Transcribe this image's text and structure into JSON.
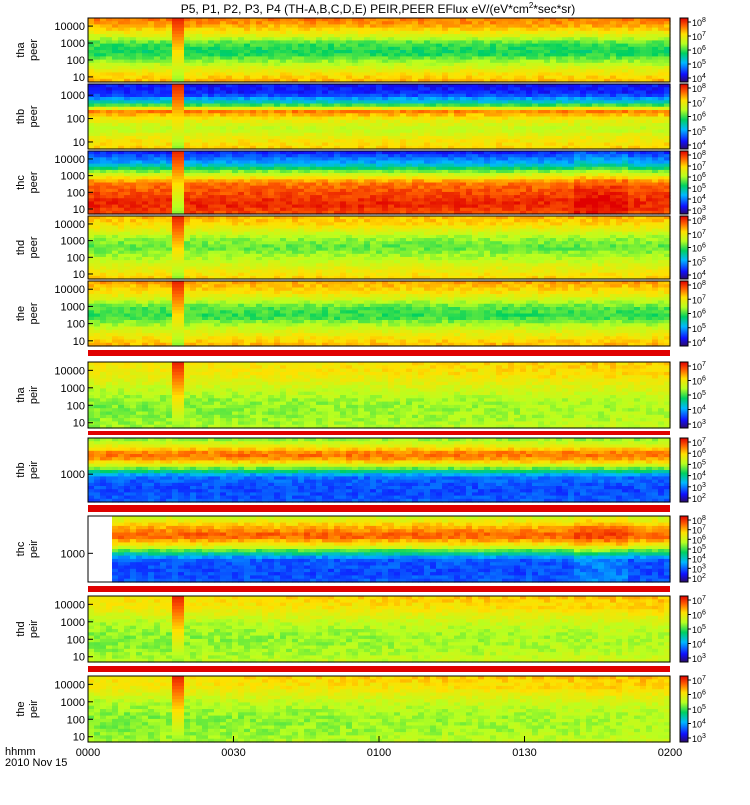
{
  "chart_data": {
    "type": "heatmap",
    "title_main": "P5, P1, P2, P3, P4 (TH-A,B,C,D,E) PEIR,PEER EFlux eV/(eV*cm",
    "title_sup": "2",
    "title_tail": "*sec*sr)",
    "colormap": "rainbow (blue-green-yellow-red)",
    "x_axis": {
      "label": "hhmm",
      "date": "2010 Nov 15",
      "ticks": [
        "0000",
        "0030",
        "0100",
        "0130",
        "0200"
      ]
    },
    "panels": [
      {
        "probe": "tha",
        "species": "peer",
        "y_ticks": [
          "10000",
          "1000",
          "100",
          "10"
        ],
        "y_range_eV": [
          5,
          30000
        ],
        "cb_ticks": [
          {
            "base": "10",
            "exp": "8"
          },
          {
            "base": "10",
            "exp": "7"
          },
          {
            "base": "10",
            "exp": "6"
          },
          {
            "base": "10",
            "exp": "5"
          },
          {
            "base": "10",
            "exp": "4"
          }
        ]
      },
      {
        "probe": "thb",
        "species": "peer",
        "y_ticks": [
          "1000",
          "100",
          "10"
        ],
        "y_range_eV": [
          5,
          3000
        ],
        "cb_ticks": [
          {
            "base": "10",
            "exp": "8"
          },
          {
            "base": "10",
            "exp": "7"
          },
          {
            "base": "10",
            "exp": "6"
          },
          {
            "base": "10",
            "exp": "5"
          },
          {
            "base": "10",
            "exp": "4"
          }
        ]
      },
      {
        "probe": "thc",
        "species": "peer",
        "y_ticks": [
          "10000",
          "1000",
          "100",
          "10"
        ],
        "y_range_eV": [
          5,
          30000
        ],
        "cb_ticks": [
          {
            "base": "10",
            "exp": "8"
          },
          {
            "base": "10",
            "exp": "7"
          },
          {
            "base": "10",
            "exp": "6"
          },
          {
            "base": "10",
            "exp": "5"
          },
          {
            "base": "10",
            "exp": "4"
          },
          {
            "base": "10",
            "exp": "3"
          }
        ]
      },
      {
        "probe": "thd",
        "species": "peer",
        "y_ticks": [
          "10000",
          "1000",
          "100",
          "10"
        ],
        "y_range_eV": [
          5,
          30000
        ],
        "cb_ticks": [
          {
            "base": "10",
            "exp": "8"
          },
          {
            "base": "10",
            "exp": "7"
          },
          {
            "base": "10",
            "exp": "6"
          },
          {
            "base": "10",
            "exp": "5"
          },
          {
            "base": "10",
            "exp": "4"
          }
        ]
      },
      {
        "probe": "the",
        "species": "peer",
        "y_ticks": [
          "10000",
          "1000",
          "100",
          "10"
        ],
        "y_range_eV": [
          5,
          30000
        ],
        "cb_ticks": [
          {
            "base": "10",
            "exp": "8"
          },
          {
            "base": "10",
            "exp": "7"
          },
          {
            "base": "10",
            "exp": "6"
          },
          {
            "base": "10",
            "exp": "5"
          },
          {
            "base": "10",
            "exp": "4"
          }
        ]
      },
      {
        "probe": "tha",
        "species": "peir",
        "y_ticks": [
          "10000",
          "1000",
          "100",
          "10"
        ],
        "y_range_eV": [
          5,
          30000
        ],
        "cb_ticks": [
          {
            "base": "10",
            "exp": "7"
          },
          {
            "base": "10",
            "exp": "6"
          },
          {
            "base": "10",
            "exp": "5"
          },
          {
            "base": "10",
            "exp": "4"
          },
          {
            "base": "10",
            "exp": "3"
          }
        ]
      },
      {
        "probe": "thb",
        "species": "peir",
        "y_ticks": [
          "1000"
        ],
        "y_range_eV": [
          100,
          20000
        ],
        "cb_ticks": [
          {
            "base": "10",
            "exp": "7"
          },
          {
            "base": "10",
            "exp": "6"
          },
          {
            "base": "10",
            "exp": "5"
          },
          {
            "base": "10",
            "exp": "4"
          },
          {
            "base": "10",
            "exp": "3"
          },
          {
            "base": "10",
            "exp": "2"
          }
        ]
      },
      {
        "probe": "thc",
        "species": "peir",
        "y_ticks": [
          "1000"
        ],
        "y_range_eV": [
          100,
          20000
        ],
        "cb_ticks": [
          {
            "base": "10",
            "exp": "8"
          },
          {
            "base": "10",
            "exp": "7"
          },
          {
            "base": "10",
            "exp": "6"
          },
          {
            "base": "10",
            "exp": "5"
          },
          {
            "base": "10",
            "exp": "4"
          },
          {
            "base": "10",
            "exp": "3"
          },
          {
            "base": "10",
            "exp": "2"
          }
        ]
      },
      {
        "probe": "thd",
        "species": "peir",
        "y_ticks": [
          "10000",
          "1000",
          "100",
          "10"
        ],
        "y_range_eV": [
          5,
          30000
        ],
        "cb_ticks": [
          {
            "base": "10",
            "exp": "7"
          },
          {
            "base": "10",
            "exp": "6"
          },
          {
            "base": "10",
            "exp": "5"
          },
          {
            "base": "10",
            "exp": "4"
          },
          {
            "base": "10",
            "exp": "3"
          }
        ]
      },
      {
        "probe": "the",
        "species": "peir",
        "y_ticks": [
          "10000",
          "1000",
          "100",
          "10"
        ],
        "y_range_eV": [
          5,
          30000
        ],
        "cb_ticks": [
          {
            "base": "10",
            "exp": "7"
          },
          {
            "base": "10",
            "exp": "6"
          },
          {
            "base": "10",
            "exp": "5"
          },
          {
            "base": "10",
            "exp": "4"
          },
          {
            "base": "10",
            "exp": "3"
          }
        ]
      }
    ]
  }
}
